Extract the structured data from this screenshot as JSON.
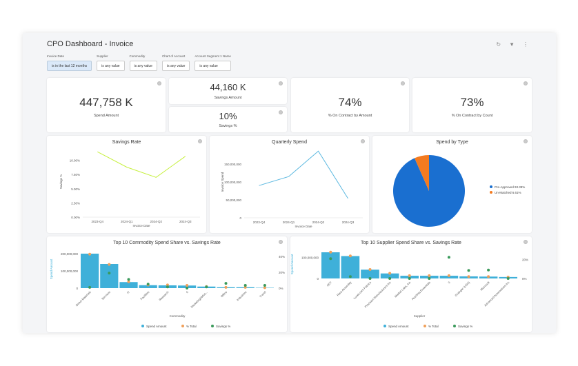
{
  "title": "CPO Dashboard - Invoice",
  "filters": [
    {
      "label": "Invoice Date",
      "value": "is in the last 12 months"
    },
    {
      "label": "Supplier",
      "value": "is any value"
    },
    {
      "label": "Commodity",
      "value": "is any value"
    },
    {
      "label": "Chart of Account",
      "value": "is any value"
    },
    {
      "label": "Account Segment 1 Name",
      "value": "is any value"
    }
  ],
  "kpis": {
    "spend": {
      "value": "447,758 K",
      "label": "Spend Amount"
    },
    "savings": {
      "value": "44,160 K",
      "label": "Savings Amount"
    },
    "savings_pct": {
      "value": "10%",
      "label": "Savings %"
    },
    "contract_amount": {
      "value": "74%",
      "label": "% On Contract by Amount"
    },
    "contract_count": {
      "value": "73%",
      "label": "% On Contract by Count"
    }
  },
  "colors": {
    "savings_line": "#c6f03c",
    "spend_line": "#5bb8e0",
    "bar": "#3fb0d9",
    "pct_total": "#f0a05a",
    "savings_pct": "#3a9a5b",
    "pie_pre": "#1a6fd0",
    "pie_un": "#f47b20"
  },
  "chart_data": [
    {
      "type": "line",
      "title": "Savings Rate",
      "xlabel": "Invoice Date",
      "ylabel": "Savings %",
      "categories": [
        "2023-Q4",
        "2024-Q1",
        "2024-Q2",
        "2024-Q3"
      ],
      "values": [
        11.5,
        8.8,
        7.0,
        10.7
      ],
      "ylim": [
        0,
        12.5
      ],
      "yticks": [
        "0.00%",
        "2.50%",
        "5.00%",
        "7.50%",
        "10.00%"
      ]
    },
    {
      "type": "line",
      "title": "Quarterly Spend",
      "xlabel": "Invoice Date",
      "ylabel": "Invoice Spend",
      "categories": [
        "2023-Q4",
        "2024-Q1",
        "2024-Q2",
        "2024-Q3"
      ],
      "values": [
        90000000,
        115000000,
        186000000,
        54000000
      ],
      "ylim": [
        0,
        200000000
      ],
      "yticks": [
        "0",
        "50,000,000",
        "100,000,000",
        "150,000,000"
      ]
    },
    {
      "type": "pie",
      "title": "Spend by Type",
      "slices": [
        {
          "name": "Pre-Approved",
          "value": 93.39,
          "label": "Pre-Approved 93.39%"
        },
        {
          "name": "Un-Matched",
          "value": 6.61,
          "label": "Un-Matched 6.61%"
        }
      ],
      "legend": "right"
    },
    {
      "type": "bar",
      "title": "Top 10 Commodity Spend Share vs. Savings Rate",
      "xlabel": "Commodity",
      "ylabel": "Spend Amount",
      "categories": [
        "Direct Materials",
        "Services",
        "IT",
        "Facilities",
        "Research",
        "0",
        "Marketing/Adve...",
        "Office",
        "Industries",
        "Travel"
      ],
      "series": [
        {
          "name": "Spend Amount",
          "values": [
            200000000,
            140000000,
            35000000,
            17000000,
            16000000,
            15000000,
            9000000,
            5000000,
            5000000,
            2000000
          ]
        },
        {
          "name": "% Total",
          "values": [
            43,
            30,
            8,
            4,
            4,
            3.5,
            2,
            1,
            1,
            0.5
          ]
        },
        {
          "name": "Savings %",
          "values": [
            1,
            19,
            11,
            5,
            1.5,
            0,
            1.5,
            6,
            3.5,
            3.5
          ]
        }
      ],
      "ylim": [
        0,
        220000000
      ],
      "yticks": [
        "0",
        "100,000,000",
        "200,000,000"
      ],
      "y2lim": [
        0,
        48
      ],
      "y2ticks": [
        "0%",
        "20%",
        "40%"
      ],
      "legend": "bottom"
    },
    {
      "type": "bar",
      "title": "Top 10 Supplier Spend Share vs. Savings Rate",
      "xlabel": "Supplier",
      "ylabel": "Spend Amount",
      "categories": [
        "ADT",
        "Rare Assembly",
        "LuxeLoom Fabrics",
        "Precision Manufacturers Inc",
        "Market Labs, Inc",
        "NutriVita Essentials",
        "0",
        "Grainger (USA)",
        "Microsoft",
        "Advanced Automotives Inc"
      ],
      "series": [
        {
          "name": "Spend Amount",
          "values": [
            125000000,
            107000000,
            42000000,
            24000000,
            13000000,
            13000000,
            13000000,
            10000000,
            9000000,
            7000000
          ]
        },
        {
          "name": "% Total",
          "values": [
            28,
            24,
            9.5,
            5.5,
            3,
            3,
            3,
            2,
            2,
            1.5
          ]
        },
        {
          "name": "Savings %",
          "values": [
            21,
            2,
            0,
            0,
            0,
            0,
            22.5,
            8.5,
            9,
            0
          ]
        }
      ],
      "ylim": [
        0,
        135000000
      ],
      "yticks": [
        "0",
        "100,000,000"
      ],
      "y2lim": [
        0,
        30
      ],
      "y2ticks": [
        "0%",
        "20%"
      ],
      "legend": "bottom"
    }
  ]
}
